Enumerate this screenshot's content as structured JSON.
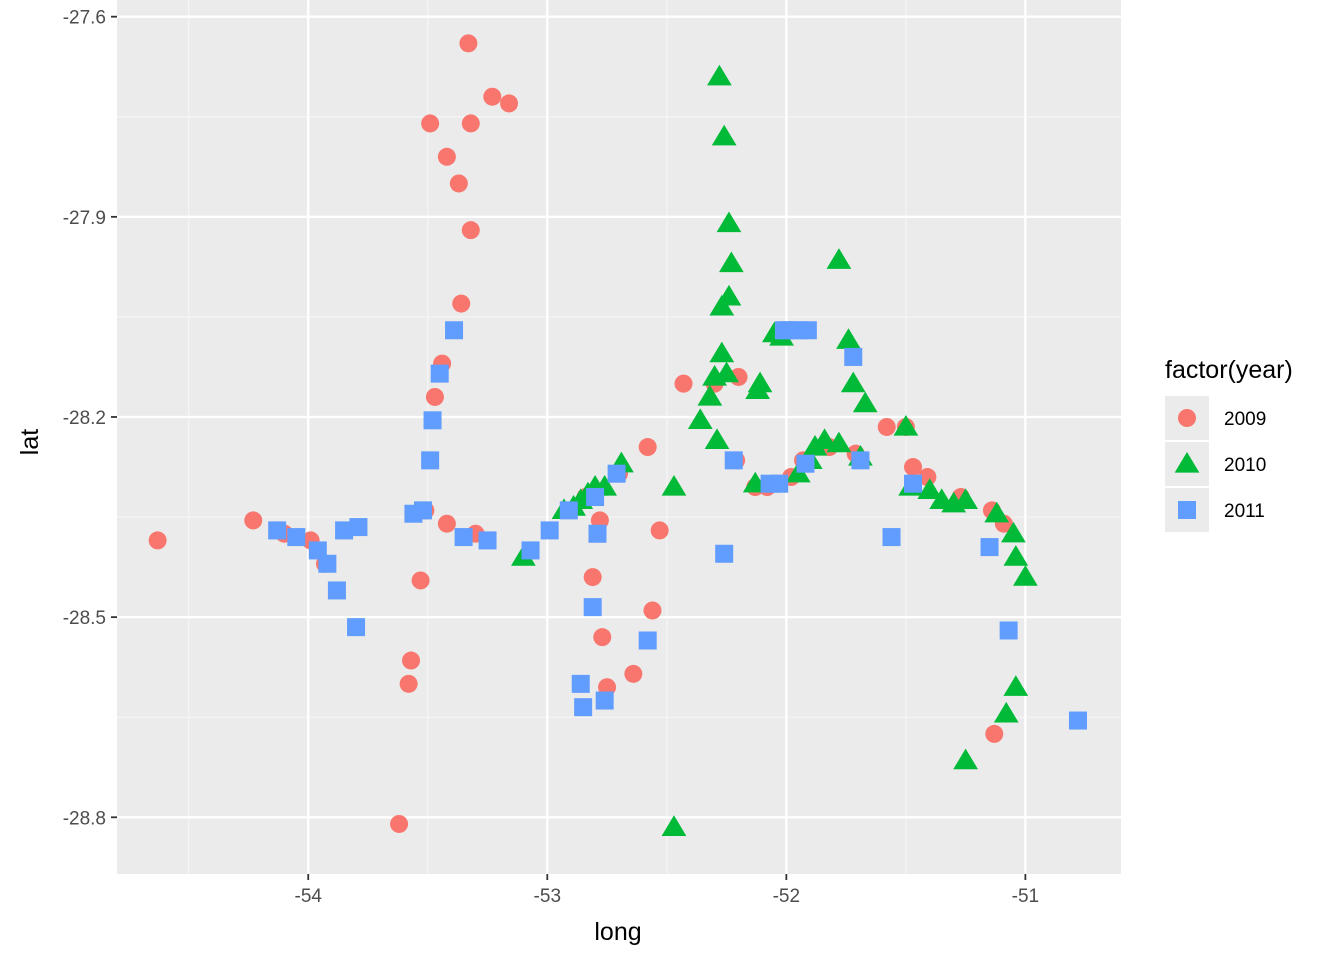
{
  "chart_data": {
    "type": "scatter",
    "title": "",
    "xlabel": "long",
    "ylabel": "lat",
    "xlim": [
      -54.8,
      -50.6
    ],
    "ylim": [
      -28.885,
      -27.575
    ],
    "x_ticks": [
      -54,
      -53,
      -52,
      -51
    ],
    "x_tick_labels": [
      "-54",
      "-53",
      "-52",
      "-51"
    ],
    "y_ticks": [
      -27.6,
      -27.9,
      -28.2,
      -28.5,
      -28.8
    ],
    "y_tick_labels": [
      "-27.6",
      "-27.9",
      "-28.2",
      "-28.5",
      "-28.8"
    ],
    "grid": true,
    "panel_background": "#ebebeb",
    "legend": {
      "title": "factor(year)",
      "position": "right"
    },
    "series": [
      {
        "name": "2009",
        "color": "#F8766D",
        "shape": "circle",
        "points": [
          [
            -54.63,
            -28.385
          ],
          [
            -54.23,
            -28.355
          ],
          [
            -54.1,
            -28.375
          ],
          [
            -53.99,
            -28.385
          ],
          [
            -53.93,
            -28.42
          ],
          [
            -53.62,
            -28.81
          ],
          [
            -53.58,
            -28.6
          ],
          [
            -53.57,
            -28.565
          ],
          [
            -53.53,
            -28.445
          ],
          [
            -53.51,
            -28.34
          ],
          [
            -53.49,
            -27.76
          ],
          [
            -53.47,
            -28.17
          ],
          [
            -53.44,
            -28.12
          ],
          [
            -53.42,
            -27.81
          ],
          [
            -53.42,
            -28.36
          ],
          [
            -53.37,
            -27.85
          ],
          [
            -53.36,
            -28.03
          ],
          [
            -53.33,
            -27.64
          ],
          [
            -53.32,
            -27.76
          ],
          [
            -53.32,
            -27.92
          ],
          [
            -53.3,
            -28.375
          ],
          [
            -53.23,
            -27.72
          ],
          [
            -53.16,
            -27.73
          ],
          [
            -52.84,
            -28.32
          ],
          [
            -52.81,
            -28.44
          ],
          [
            -52.78,
            -28.355
          ],
          [
            -52.77,
            -28.53
          ],
          [
            -52.75,
            -28.605
          ],
          [
            -52.7,
            -28.285
          ],
          [
            -52.64,
            -28.585
          ],
          [
            -52.58,
            -28.245
          ],
          [
            -52.56,
            -28.49
          ],
          [
            -52.53,
            -28.37
          ],
          [
            -52.43,
            -28.15
          ],
          [
            -52.3,
            -28.15
          ],
          [
            -52.21,
            -28.265
          ],
          [
            -52.2,
            -28.14
          ],
          [
            -52.13,
            -28.305
          ],
          [
            -52.08,
            -28.305
          ],
          [
            -52.03,
            -28.3
          ],
          [
            -51.98,
            -28.29
          ],
          [
            -51.93,
            -28.265
          ],
          [
            -51.82,
            -28.245
          ],
          [
            -51.71,
            -28.255
          ],
          [
            -51.58,
            -28.215
          ],
          [
            -51.5,
            -28.215
          ],
          [
            -51.47,
            -28.275
          ],
          [
            -51.41,
            -28.29
          ],
          [
            -51.27,
            -28.32
          ],
          [
            -51.14,
            -28.34
          ],
          [
            -51.13,
            -28.675
          ],
          [
            -51.09,
            -28.36
          ]
        ]
      },
      {
        "name": "2010",
        "color": "#00BA38",
        "shape": "triangle",
        "points": [
          [
            -53.1,
            -28.41
          ],
          [
            -52.93,
            -28.34
          ],
          [
            -52.89,
            -28.335
          ],
          [
            -52.86,
            -28.325
          ],
          [
            -52.83,
            -28.315
          ],
          [
            -52.8,
            -28.305
          ],
          [
            -52.76,
            -28.305
          ],
          [
            -52.69,
            -28.27
          ],
          [
            -52.47,
            -28.305
          ],
          [
            -52.47,
            -28.815
          ],
          [
            -52.36,
            -28.205
          ],
          [
            -52.32,
            -28.17
          ],
          [
            -52.3,
            -28.14
          ],
          [
            -52.29,
            -28.235
          ],
          [
            -52.28,
            -27.69
          ],
          [
            -52.27,
            -28.105
          ],
          [
            -52.27,
            -28.035
          ],
          [
            -52.26,
            -27.78
          ],
          [
            -52.25,
            -28.135
          ],
          [
            -52.24,
            -27.91
          ],
          [
            -52.24,
            -28.02
          ],
          [
            -52.23,
            -27.97
          ],
          [
            -52.13,
            -28.3
          ],
          [
            -52.12,
            -28.16
          ],
          [
            -52.11,
            -28.15
          ],
          [
            -52.05,
            -28.075
          ],
          [
            -52.02,
            -28.08
          ],
          [
            -51.95,
            -28.285
          ],
          [
            -51.9,
            -28.265
          ],
          [
            -51.88,
            -28.245
          ],
          [
            -51.84,
            -28.235
          ],
          [
            -51.78,
            -28.24
          ],
          [
            -51.78,
            -27.965
          ],
          [
            -51.74,
            -28.085
          ],
          [
            -51.72,
            -28.15
          ],
          [
            -51.69,
            -28.26
          ],
          [
            -51.67,
            -28.18
          ],
          [
            -51.5,
            -28.215
          ],
          [
            -51.48,
            -28.305
          ],
          [
            -51.4,
            -28.31
          ],
          [
            -51.35,
            -28.325
          ],
          [
            -51.3,
            -28.33
          ],
          [
            -51.25,
            -28.325
          ],
          [
            -51.25,
            -28.715
          ],
          [
            -51.12,
            -28.345
          ],
          [
            -51.08,
            -28.645
          ],
          [
            -51.05,
            -28.375
          ],
          [
            -51.04,
            -28.605
          ],
          [
            -51.04,
            -28.41
          ],
          [
            -51.0,
            -28.44
          ]
        ]
      },
      {
        "name": "2011",
        "color": "#619CFF",
        "shape": "square",
        "points": [
          [
            -54.13,
            -28.37
          ],
          [
            -54.05,
            -28.38
          ],
          [
            -53.96,
            -28.4
          ],
          [
            -53.92,
            -28.42
          ],
          [
            -53.88,
            -28.46
          ],
          [
            -53.85,
            -28.37
          ],
          [
            -53.8,
            -28.515
          ],
          [
            -53.79,
            -28.365
          ],
          [
            -53.56,
            -28.345
          ],
          [
            -53.52,
            -28.34
          ],
          [
            -53.49,
            -28.265
          ],
          [
            -53.48,
            -28.205
          ],
          [
            -53.45,
            -28.135
          ],
          [
            -53.39,
            -28.07
          ],
          [
            -53.35,
            -28.38
          ],
          [
            -53.25,
            -28.385
          ],
          [
            -53.07,
            -28.4
          ],
          [
            -52.99,
            -28.37
          ],
          [
            -52.91,
            -28.34
          ],
          [
            -52.86,
            -28.6
          ],
          [
            -52.85,
            -28.635
          ],
          [
            -52.81,
            -28.485
          ],
          [
            -52.8,
            -28.32
          ],
          [
            -52.79,
            -28.375
          ],
          [
            -52.76,
            -28.625
          ],
          [
            -52.71,
            -28.285
          ],
          [
            -52.58,
            -28.535
          ],
          [
            -52.26,
            -28.405
          ],
          [
            -52.22,
            -28.265
          ],
          [
            -52.07,
            -28.3
          ],
          [
            -52.03,
            -28.3
          ],
          [
            -52.01,
            -28.07
          ],
          [
            -51.99,
            -28.07
          ],
          [
            -51.95,
            -28.07
          ],
          [
            -51.92,
            -28.27
          ],
          [
            -51.91,
            -28.07
          ],
          [
            -51.72,
            -28.11
          ],
          [
            -51.69,
            -28.265
          ],
          [
            -51.56,
            -28.38
          ],
          [
            -51.47,
            -28.3
          ],
          [
            -51.15,
            -28.395
          ],
          [
            -51.07,
            -28.52
          ],
          [
            -50.78,
            -28.655
          ]
        ]
      }
    ]
  }
}
